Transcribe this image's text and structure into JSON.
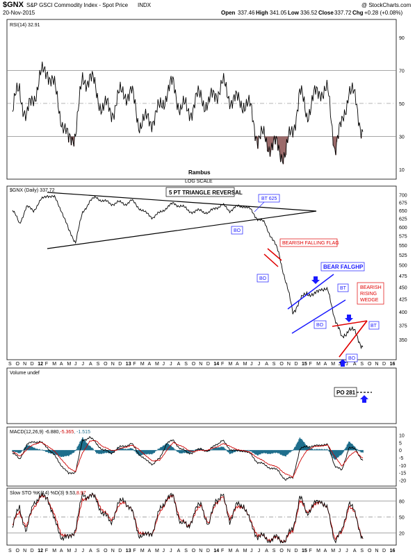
{
  "header": {
    "symbol": "$GNX",
    "name": "S&P GSCI Commodity Index - Spot Price",
    "exchange": "INDX",
    "watermark": "@ StockCharts.com",
    "date": "20-Nov-2015",
    "open_label": "Open",
    "open": "337.46",
    "high_label": "High",
    "high": "341.05",
    "low_label": "Low",
    "low": "336.52",
    "close_label": "Close",
    "close": "337.72",
    "chg_label": "Chg",
    "chg": "+0.28 (+0.08%)"
  },
  "chart_data": [
    {
      "type": "line",
      "panel": "rsi",
      "label": "RSI(14) 32.91",
      "y_ticks": [
        10,
        30,
        50,
        70,
        90
      ],
      "ylim": [
        5,
        100
      ],
      "reference_lines": [
        30,
        50,
        70
      ],
      "shaded_below": 30,
      "x": [
        "2011-09",
        "2011-10",
        "2011-11",
        "2011-12",
        "2012-01",
        "2012-02",
        "2012-03",
        "2012-04",
        "2012-05",
        "2012-06",
        "2012-07",
        "2012-08",
        "2012-09",
        "2012-10",
        "2012-11",
        "2012-12",
        "2013-01",
        "2013-02",
        "2013-03",
        "2013-04",
        "2013-05",
        "2013-06",
        "2013-07",
        "2013-08",
        "2013-09",
        "2013-10",
        "2013-11",
        "2013-12",
        "2014-01",
        "2014-02",
        "2014-03",
        "2014-04",
        "2014-05",
        "2014-06",
        "2014-07",
        "2014-08",
        "2014-09",
        "2014-10",
        "2014-11",
        "2014-12",
        "2015-01",
        "2015-02",
        "2015-03",
        "2015-04",
        "2015-05",
        "2015-06",
        "2015-07",
        "2015-08",
        "2015-09",
        "2015-10",
        "2015-11"
      ],
      "values": [
        45,
        60,
        40,
        55,
        65,
        72,
        58,
        42,
        25,
        35,
        62,
        68,
        55,
        48,
        45,
        52,
        58,
        55,
        40,
        38,
        42,
        45,
        58,
        60,
        48,
        45,
        50,
        55,
        48,
        58,
        60,
        55,
        50,
        52,
        45,
        30,
        28,
        25,
        22,
        20,
        35,
        55,
        45,
        52,
        60,
        55,
        25,
        35,
        60,
        50,
        32.91
      ]
    },
    {
      "type": "line",
      "panel": "price",
      "label": "$GNX (Daily) 337.72",
      "title": "Rambus",
      "subtitle": "LOG SCALE",
      "y_ticks": [
        350,
        375,
        400,
        425,
        450,
        475,
        500,
        525,
        550,
        575,
        600,
        625,
        650,
        675,
        700
      ],
      "ylim": [
        320,
        720
      ],
      "x_ticks": [
        "S",
        "O",
        "N",
        "D",
        "12",
        "F",
        "M",
        "A",
        "M",
        "J",
        "J",
        "A",
        "S",
        "O",
        "N",
        "D",
        "13",
        "F",
        "M",
        "A",
        "M",
        "J",
        "J",
        "A",
        "S",
        "O",
        "N",
        "D",
        "14",
        "F",
        "M",
        "A",
        "M",
        "J",
        "J",
        "A",
        "S",
        "O",
        "N",
        "D",
        "15",
        "F",
        "M",
        "A",
        "M",
        "J",
        "J",
        "A",
        "S",
        "O",
        "N",
        "D",
        "16",
        "F"
      ],
      "x": [
        "2011-09",
        "2011-10",
        "2011-11",
        "2011-12",
        "2012-01",
        "2012-02",
        "2012-03",
        "2012-04",
        "2012-05",
        "2012-06",
        "2012-07",
        "2012-08",
        "2012-09",
        "2012-10",
        "2012-11",
        "2012-12",
        "2013-01",
        "2013-02",
        "2013-03",
        "2013-04",
        "2013-05",
        "2013-06",
        "2013-07",
        "2013-08",
        "2013-09",
        "2013-10",
        "2013-11",
        "2013-12",
        "2014-01",
        "2014-02",
        "2014-03",
        "2014-04",
        "2014-05",
        "2014-06",
        "2014-07",
        "2014-08",
        "2014-09",
        "2014-10",
        "2014-11",
        "2014-12",
        "2015-01",
        "2015-02",
        "2015-03",
        "2015-04",
        "2015-05",
        "2015-06",
        "2015-07",
        "2015-08",
        "2015-09",
        "2015-10",
        "2015-11"
      ],
      "values": [
        650,
        610,
        660,
        650,
        680,
        700,
        690,
        650,
        590,
        560,
        640,
        680,
        690,
        680,
        670,
        675,
        670,
        680,
        660,
        640,
        630,
        640,
        660,
        670,
        665,
        650,
        645,
        650,
        640,
        660,
        665,
        650,
        660,
        665,
        650,
        625,
        610,
        570,
        530,
        460,
        400,
        420,
        440,
        430,
        450,
        440,
        390,
        350,
        370,
        360,
        337.72
      ],
      "annotations": [
        {
          "text": "5 PT TRIANGLE REVERSAL",
          "color": "#000000"
        },
        {
          "text": "BT 625",
          "color": "#1a1aff"
        },
        {
          "text": "BO",
          "color": "#1a1aff"
        },
        {
          "text": "BEARISH FALLING FLAG",
          "color": "#e00000"
        },
        {
          "text": "BO",
          "color": "#1a1aff"
        },
        {
          "text": "BEAR FALGHP",
          "color": "#1a1aff"
        },
        {
          "text": "BT",
          "color": "#1a1aff"
        },
        {
          "text": "BO",
          "color": "#1a1aff"
        },
        {
          "text": "BEARISH RISING WEDGE",
          "color": "#e00000"
        },
        {
          "text": "BT",
          "color": "#1a1aff"
        },
        {
          "text": "BO",
          "color": "#1a1aff"
        }
      ]
    },
    {
      "type": "line",
      "panel": "volume",
      "label": "Volume undef",
      "annotations": [
        {
          "text": "PO 281",
          "color": "#000000"
        }
      ]
    },
    {
      "type": "line",
      "panel": "macd",
      "label_macd": "MACD(12,26,9) -6.880,",
      "label_signal": "-5.365",
      "label_hist": ", -1.515",
      "y_ticks": [
        10,
        5,
        0,
        -5,
        -10,
        -15,
        -20
      ],
      "ylim": [
        -23,
        13
      ],
      "series": [
        {
          "name": "MACD",
          "color": "#000000",
          "values": [
            -2,
            -6,
            3,
            6,
            5,
            2,
            -4,
            -10,
            -16,
            -14,
            6,
            9,
            4,
            0,
            -2,
            1,
            3,
            4,
            -2,
            -7,
            -9,
            -6,
            5,
            6,
            1,
            -2,
            -1,
            1,
            -1,
            4,
            6,
            1,
            -1,
            0,
            -3,
            -8,
            -10,
            -12,
            -14,
            -20,
            -18,
            0,
            3,
            2,
            4,
            3,
            -10,
            -14,
            2,
            0,
            -6.88
          ]
        },
        {
          "name": "Signal",
          "color": "#cc0000",
          "values": [
            -1,
            -4,
            0,
            4,
            5,
            3,
            -1,
            -6,
            -12,
            -14,
            -2,
            6,
            6,
            2,
            0,
            0,
            2,
            3,
            1,
            -4,
            -7,
            -7,
            0,
            5,
            3,
            0,
            -1,
            0,
            0,
            2,
            4,
            3,
            0,
            0,
            -2,
            -5,
            -8,
            -10,
            -12,
            -16,
            -18,
            -8,
            0,
            2,
            3,
            3,
            -4,
            -11,
            -4,
            -1,
            -5.365
          ]
        },
        {
          "name": "Histogram",
          "color": "#1f6e8c",
          "values": [
            -1,
            -2,
            3,
            2,
            0,
            -1,
            -3,
            -4,
            -4,
            0,
            8,
            3,
            -2,
            -2,
            -2,
            1,
            1,
            1,
            -3,
            -3,
            -2,
            1,
            5,
            1,
            -2,
            -2,
            0,
            1,
            -1,
            2,
            2,
            -2,
            -1,
            0,
            -1,
            -3,
            -2,
            -2,
            -2,
            -4,
            0,
            8,
            3,
            0,
            1,
            0,
            -6,
            -3,
            6,
            1,
            -1.515
          ]
        }
      ]
    },
    {
      "type": "line",
      "panel": "stochastic",
      "label_k": "Slow STO %K(14) %D(3) 9.53,",
      "label_d": "8.97",
      "y_ticks": [
        80,
        50,
        20
      ],
      "ylim": [
        0,
        100
      ],
      "reference_lines": [
        20,
        50,
        80
      ],
      "series": [
        {
          "name": "%K",
          "color": "#000000",
          "values": [
            30,
            70,
            20,
            80,
            85,
            90,
            40,
            15,
            8,
            30,
            90,
            92,
            80,
            55,
            40,
            70,
            85,
            60,
            20,
            12,
            25,
            60,
            88,
            85,
            40,
            30,
            60,
            75,
            30,
            85,
            88,
            45,
            70,
            75,
            35,
            15,
            10,
            8,
            10,
            5,
            30,
            85,
            60,
            70,
            85,
            60,
            8,
            20,
            80,
            50,
            9.53
          ]
        },
        {
          "name": "%D",
          "color": "#cc0000",
          "values": [
            35,
            60,
            30,
            70,
            85,
            88,
            50,
            20,
            10,
            25,
            80,
            92,
            84,
            60,
            45,
            65,
            80,
            62,
            25,
            15,
            22,
            55,
            84,
            86,
            45,
            32,
            55,
            72,
            35,
            78,
            86,
            50,
            65,
            72,
            40,
            18,
            11,
            9,
            9,
            6,
            25,
            78,
            62,
            68,
            82,
            62,
            12,
            18,
            72,
            52,
            8.97
          ]
        }
      ]
    }
  ]
}
